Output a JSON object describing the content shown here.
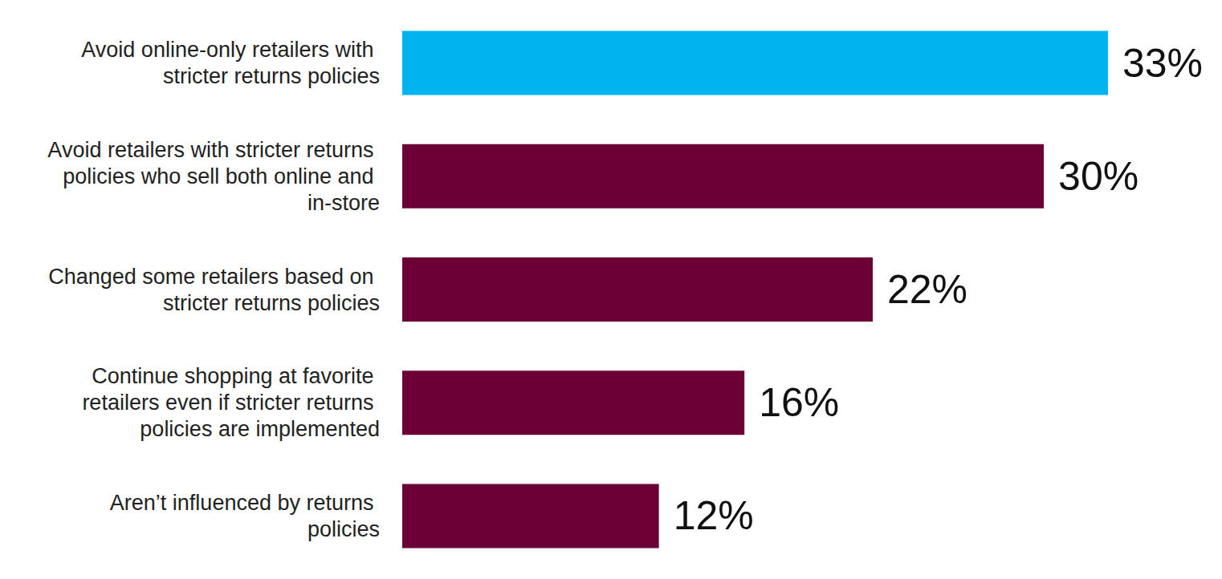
{
  "chart_data": {
    "type": "bar",
    "orientation": "horizontal",
    "categories": [
      "Avoid online-only retailers with stricter returns policies",
      "Avoid retailers with stricter returns policies who sell both online and in-store",
      "Changed some retailers based on stricter returns policies",
      "Continue shopping at favorite retailers even if stricter returns policies are implemented",
      "Aren’t influenced by returns policies"
    ],
    "values": [
      33,
      30,
      22,
      16,
      12
    ],
    "value_labels": [
      "33%",
      "30%",
      "22%",
      "16%",
      "12%"
    ],
    "colors": [
      "#00b5ef",
      "#6b0036",
      "#6b0036",
      "#6b0036",
      "#6b0036"
    ],
    "xlim": [
      0,
      33
    ],
    "data_labels": true,
    "tick_labels": "y",
    "grid": false
  }
}
